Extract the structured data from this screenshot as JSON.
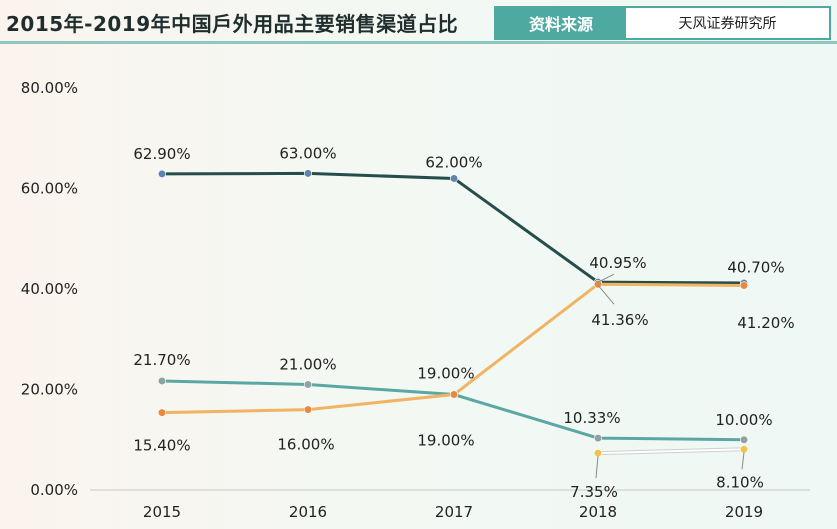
{
  "header": {
    "title": "2015年-2019年中国戶外用品主要销售渠道占比",
    "source_tag": "资料来源",
    "source_name": "天风证券研究所"
  },
  "chart_data": {
    "type": "line",
    "title": "2015年-2019年中国戶外用品主要销售渠道占比",
    "categories": [
      "2015",
      "2016",
      "2017",
      "2018",
      "2019"
    ],
    "ylim": [
      0,
      80
    ],
    "yticks": [
      "0.00%",
      "20.00%",
      "40.00%",
      "60.00%",
      "80.00%"
    ],
    "grid": false,
    "series": [
      {
        "name": "series-dark",
        "color": "#264d4a",
        "values": [
          62.9,
          63.0,
          62.0,
          41.36,
          41.2
        ],
        "labels": [
          "62.90%",
          "63.00%",
          "62.00%",
          "41.36%",
          "41.20%"
        ],
        "label_pos": [
          "above",
          "above",
          "above",
          "below",
          "below"
        ]
      },
      {
        "name": "series-teal",
        "color": "#5aa7a4",
        "values": [
          21.7,
          21.0,
          19.0,
          10.33,
          10.0
        ],
        "labels": [
          "21.70%",
          "21.00%",
          "19.00%",
          "10.33%",
          "10.00%"
        ],
        "label_pos": [
          "above",
          "above",
          "above",
          "above",
          "above"
        ]
      },
      {
        "name": "series-orange",
        "color": "#f0b463",
        "values": [
          15.4,
          16.0,
          19.0,
          40.95,
          40.7
        ],
        "labels": [
          "15.40%",
          "16.00%",
          "19.00%",
          "40.95%",
          "40.70%"
        ],
        "label_pos": [
          "below",
          "below",
          "below",
          "above",
          "above"
        ]
      },
      {
        "name": "series-yellow",
        "color": "#e6e6e6",
        "marker_color": "#f2c44a",
        "values": [
          null,
          null,
          null,
          7.35,
          8.1
        ],
        "labels": [
          "",
          "",
          "",
          "7.35%",
          "8.10%"
        ],
        "label_pos": [
          "below",
          "below",
          "below",
          "below",
          "below"
        ]
      }
    ]
  }
}
